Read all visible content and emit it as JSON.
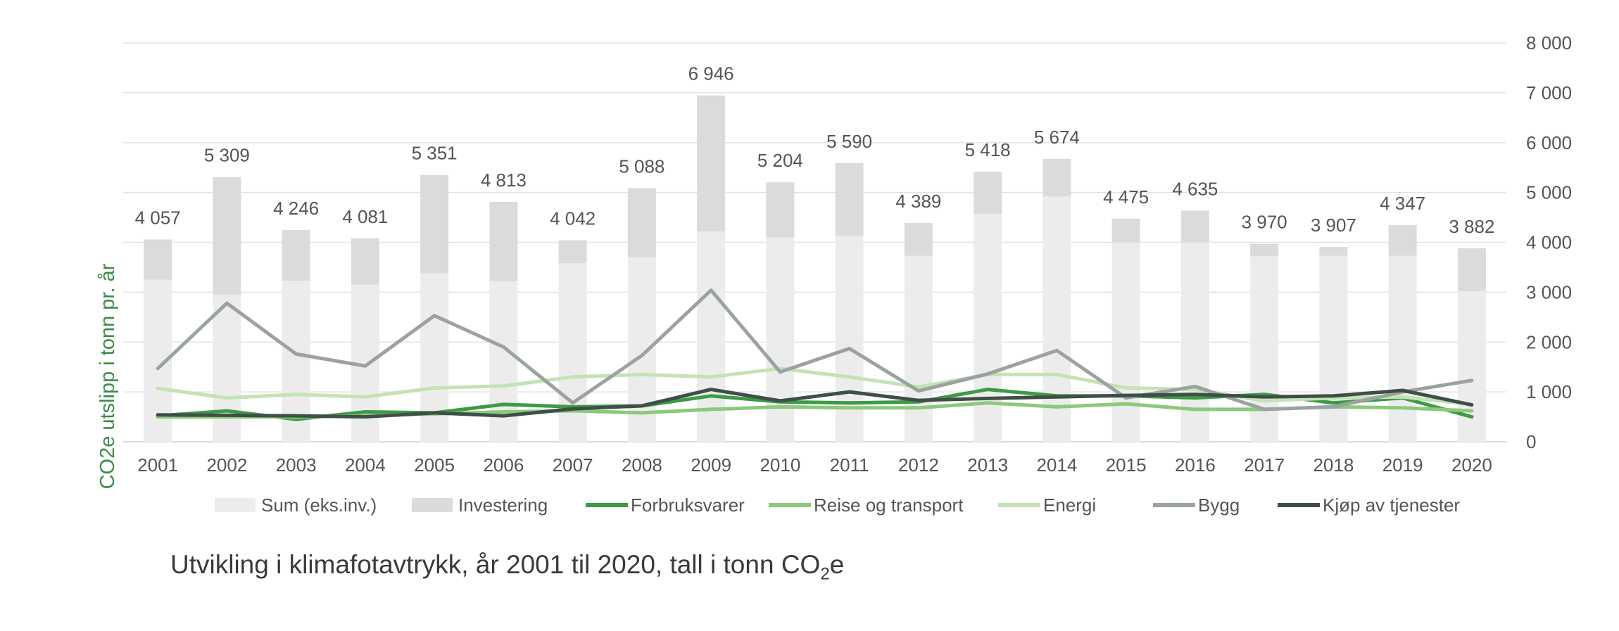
{
  "caption": {
    "main": "Utvikling i klimafotavtrykk, år 2001 til 2020, tall i tonn CO",
    "subscript": "2",
    "suffix": "e"
  },
  "chart_data": {
    "type": "bar",
    "ylabel": "CO2e utslipp i tonn pr. år",
    "ylim": [
      0,
      8000
    ],
    "yticks": [
      0,
      1000,
      2000,
      3000,
      4000,
      5000,
      6000,
      7000,
      8000
    ],
    "ytick_labels": [
      "0",
      "1 000",
      "2 000",
      "3 000",
      "4 000",
      "5 000",
      "6 000",
      "7 000",
      "8 000"
    ],
    "y_axis_position": "right",
    "grid": true,
    "legend_position": "bottom",
    "categories": [
      "2001",
      "2002",
      "2003",
      "2004",
      "2005",
      "2006",
      "2007",
      "2008",
      "2009",
      "2010",
      "2011",
      "2012",
      "2013",
      "2014",
      "2015",
      "2016",
      "2017",
      "2018",
      "2019",
      "2020"
    ],
    "bar_series": [
      {
        "name": "Sum (eks.inv.)",
        "color": "#ececec",
        "values": [
          3250,
          2950,
          3230,
          3150,
          3380,
          3220,
          3580,
          3700,
          4220,
          4100,
          4130,
          3730,
          4570,
          4920,
          4000,
          4000,
          3720,
          3730,
          3730,
          3020
        ]
      },
      {
        "name": "Investering",
        "color": "#d9dcdb",
        "values": [
          807,
          2359,
          1016,
          931,
          1971,
          1593,
          462,
          1388,
          2726,
          1104,
          1460,
          659,
          848,
          754,
          475,
          635,
          250,
          177,
          617,
          862
        ]
      }
    ],
    "totals": [
      4057,
      5309,
      4246,
      4081,
      5351,
      4813,
      4042,
      5088,
      6946,
      5204,
      5590,
      4389,
      5418,
      5674,
      4475,
      4635,
      3970,
      3907,
      4347,
      3882
    ],
    "total_labels": [
      "4 057",
      "5 309",
      "4 246",
      "4 081",
      "5 351",
      "4 813",
      "4 042",
      "5 088",
      "6 946",
      "5 204",
      "5 590",
      "4 389",
      "5 418",
      "5 674",
      "4 475",
      "4 635",
      "3 970",
      "3 907",
      "4 347",
      "3 882"
    ],
    "line_series": [
      {
        "name": "Forbruksvarer",
        "color": "#3d9a45",
        "values": [
          520,
          620,
          450,
          600,
          580,
          750,
          700,
          720,
          920,
          800,
          780,
          800,
          1050,
          920,
          920,
          880,
          950,
          780,
          880,
          500
        ]
      },
      {
        "name": "Reise og transport",
        "color": "#8cc97a",
        "values": [
          500,
          500,
          500,
          520,
          560,
          600,
          620,
          580,
          650,
          700,
          680,
          680,
          780,
          700,
          760,
          650,
          650,
          700,
          680,
          620
        ]
      },
      {
        "name": "Energi",
        "color": "#c3e3b5",
        "values": [
          1070,
          880,
          950,
          900,
          1080,
          1120,
          1300,
          1350,
          1300,
          1470,
          1300,
          1100,
          1350,
          1350,
          1080,
          1050,
          820,
          880,
          900,
          750
        ]
      },
      {
        "name": "Bygg",
        "color": "#9ba3a0",
        "values": [
          1470,
          2780,
          1760,
          1520,
          2530,
          1900,
          780,
          1730,
          3040,
          1400,
          1870,
          1020,
          1360,
          1830,
          880,
          1110,
          650,
          700,
          1000,
          1230
        ]
      },
      {
        "name": "Kjøp av tjenester",
        "color": "#3f4f47",
        "values": [
          540,
          530,
          520,
          500,
          580,
          520,
          660,
          720,
          1050,
          820,
          1000,
          830,
          870,
          900,
          930,
          950,
          900,
          920,
          1030,
          740
        ]
      }
    ]
  }
}
